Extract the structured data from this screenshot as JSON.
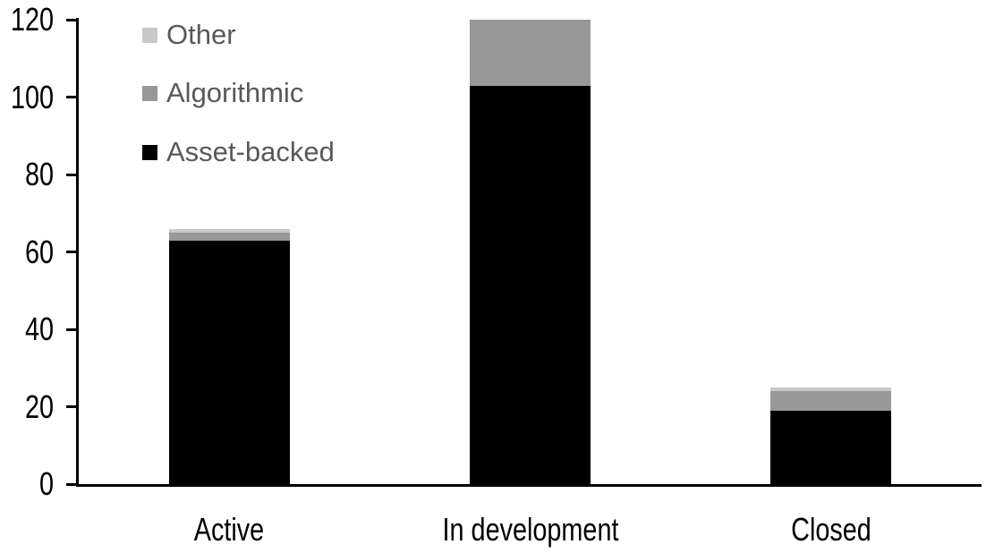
{
  "chart_data": {
    "type": "bar",
    "stacked": true,
    "title": "",
    "categories": [
      "Active",
      "In development",
      "Closed"
    ],
    "series": [
      {
        "name": "Asset-backed",
        "color": "#000000",
        "values": [
          63,
          103,
          19
        ]
      },
      {
        "name": "Algorithmic",
        "color": "#989898",
        "values": [
          2,
          17,
          5
        ]
      },
      {
        "name": "Other",
        "color": "#c8c8c8",
        "values": [
          1,
          0,
          1
        ]
      }
    ],
    "y_axis": {
      "min": 0,
      "max": 120,
      "tick_step": 20,
      "ticks": [
        0,
        20,
        40,
        60,
        80,
        100,
        120
      ]
    },
    "x_axis": {
      "labels": [
        "Active",
        "In development",
        "Closed"
      ]
    },
    "legend": {
      "position": "top-left",
      "order": [
        "Other",
        "Algorithmic",
        "Asset-backed"
      ]
    },
    "grid": false
  },
  "styles": {
    "background": "#ffffff",
    "axis_color": "#000000",
    "tick_label_color": "#000000",
    "category_label_color": "#000000",
    "legend_text_color": "#595959"
  }
}
